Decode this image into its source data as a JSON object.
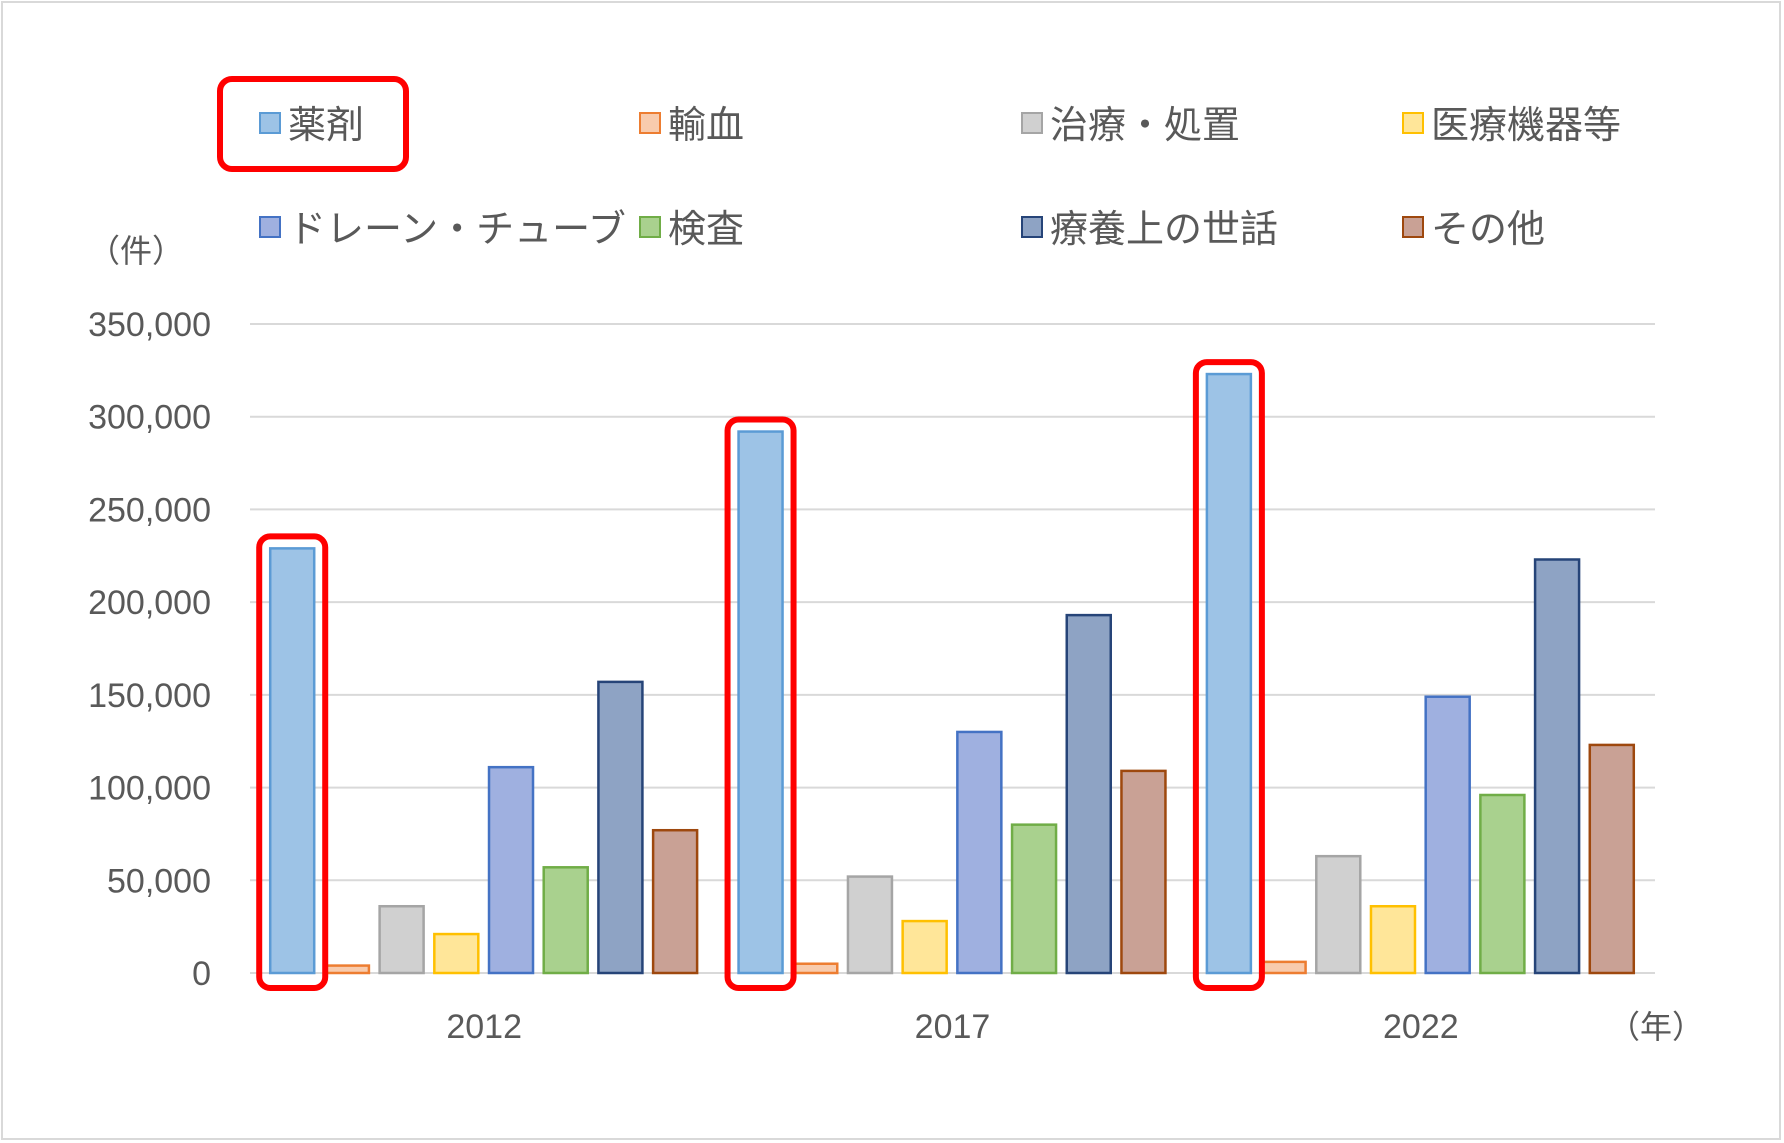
{
  "chart_data": {
    "type": "bar",
    "categories": [
      "2012",
      "2017",
      "2022"
    ],
    "y_unit": "（件）",
    "x_unit": "（年）",
    "ylim": [
      0,
      350000
    ],
    "yticks": [
      "0",
      "50,000",
      "100,000",
      "150,000",
      "200,000",
      "250,000",
      "300,000",
      "350,000"
    ],
    "grid": true,
    "legend_position": "top",
    "series": [
      {
        "name": "薬剤",
        "values": [
          229000,
          292000,
          323000
        ],
        "fill": "#9dc3e6",
        "stroke": "#5b9bd5",
        "highlighted": true
      },
      {
        "name": "輸血",
        "values": [
          4000,
          5000,
          6000
        ],
        "fill": "#f8cbad",
        "stroke": "#ed7d31"
      },
      {
        "name": "治療・処置",
        "values": [
          36000,
          52000,
          63000
        ],
        "fill": "#d0d0d0",
        "stroke": "#a5a5a5"
      },
      {
        "name": "医療機器等",
        "values": [
          21000,
          28000,
          36000
        ],
        "fill": "#ffe699",
        "stroke": "#ffc000"
      },
      {
        "name": "ドレーン・チューブ",
        "values": [
          111000,
          130000,
          149000
        ],
        "fill": "#9fb0e0",
        "stroke": "#4472c4"
      },
      {
        "name": "検査",
        "values": [
          57000,
          80000,
          96000
        ],
        "fill": "#a9d18e",
        "stroke": "#70ad47"
      },
      {
        "name": "療養上の世話",
        "values": [
          157000,
          193000,
          223000
        ],
        "fill": "#8ea3c4",
        "stroke": "#264478"
      },
      {
        "name": "その他",
        "values": [
          77000,
          109000,
          123000
        ],
        "fill": "#c9a195",
        "stroke": "#9e480e"
      }
    ],
    "highlight_color": "#ff0000"
  }
}
